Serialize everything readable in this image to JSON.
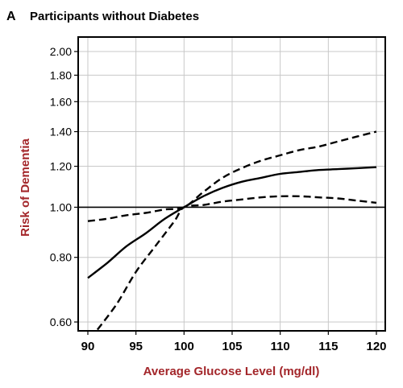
{
  "panel": {
    "letter": "A",
    "title": "Participants without Diabetes"
  },
  "chart_data": {
    "type": "line",
    "xlabel": "Average Glucose Level (mg/dl)",
    "ylabel": "Risk of Dementia",
    "xlim": [
      90,
      120
    ],
    "ylim": [
      0.6,
      2.0
    ],
    "yscale": "log",
    "x_ticks": [
      90,
      95,
      100,
      105,
      110,
      115,
      120
    ],
    "y_ticks": [
      0.6,
      0.8,
      1.0,
      1.2,
      1.4,
      1.6,
      1.8,
      2.0
    ],
    "y_tick_labels": [
      "0.60",
      "0.80",
      "1.00",
      "1.20",
      "1.40",
      "1.60",
      "1.80",
      "2.00"
    ],
    "grid": true,
    "reference_line": 1.0,
    "series": [
      {
        "role": "estimate",
        "style": "solid",
        "x": [
          90,
          92,
          94,
          96,
          98,
          100,
          102,
          104,
          106,
          108,
          110,
          112,
          114,
          116,
          118,
          120
        ],
        "y": [
          0.73,
          0.78,
          0.84,
          0.89,
          0.95,
          1.0,
          1.05,
          1.09,
          1.12,
          1.14,
          1.16,
          1.17,
          1.18,
          1.185,
          1.19,
          1.195
        ]
      },
      {
        "role": "upper-bound",
        "style": "dashed",
        "x": [
          90,
          92,
          94,
          96,
          98,
          100,
          102,
          104,
          106,
          108,
          110,
          112,
          114,
          116,
          118,
          120
        ],
        "y": [
          0.94,
          0.95,
          0.965,
          0.975,
          0.99,
          1.0,
          1.07,
          1.14,
          1.19,
          1.23,
          1.26,
          1.29,
          1.31,
          1.34,
          1.37,
          1.4
        ]
      },
      {
        "role": "lower-bound",
        "style": "dashed",
        "x": [
          91,
          93,
          95,
          97,
          99,
          100,
          102,
          104,
          106,
          108,
          110,
          112,
          114,
          116,
          118,
          120
        ],
        "y": [
          0.58,
          0.65,
          0.75,
          0.84,
          0.94,
          1.0,
          1.01,
          1.025,
          1.035,
          1.045,
          1.05,
          1.05,
          1.045,
          1.04,
          1.03,
          1.02
        ]
      }
    ]
  }
}
